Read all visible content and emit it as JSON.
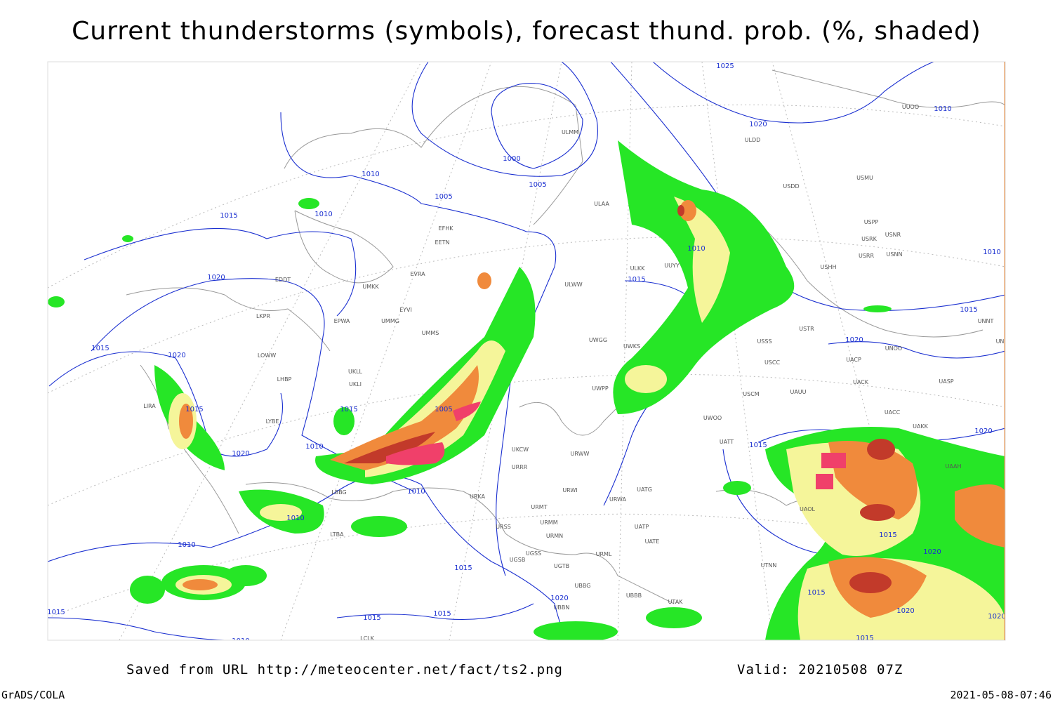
{
  "title": "Current thunderstorms (symbols), forecast thund. prob. (%, shaded)",
  "map": {
    "isobar_labels": [
      "1025",
      "1020",
      "1010",
      "1000",
      "1005",
      "1010",
      "1005",
      "1010",
      "1015",
      "1020",
      "1015",
      "1020",
      "1015",
      "1020",
      "1010",
      "1015",
      "1005",
      "1010",
      "1015",
      "1010",
      "1015",
      "1020",
      "1020",
      "1015",
      "1010",
      "1010",
      "1010",
      "1015",
      "1015",
      "1020",
      "1015",
      "1020",
      "1015",
      "1015",
      "1015",
      "1010",
      "1020",
      "1020",
      "1015"
    ],
    "station_labels": [
      "UUOO",
      "ULDD",
      "USDD",
      "USMU",
      "ULMM",
      "ULAA",
      "USPP",
      "USRK",
      "USNR",
      "USRR",
      "USNN",
      "USHH",
      "ULKK",
      "UUYY",
      "EFHK",
      "EETN",
      "EVRA",
      "EDDT",
      "UMKK",
      "ULWW",
      "EPWA",
      "UMMG",
      "EYVI",
      "LKPR",
      "UMMS",
      "USSS",
      "USTR",
      "UNNT",
      "UNBB",
      "UWGG",
      "UWKS",
      "UNOO",
      "USCC",
      "UACP",
      "UACK",
      "UASP",
      "LOWW",
      "UKLL",
      "UKLI",
      "LHBP",
      "UWPP",
      "USCM",
      "UAUU",
      "LIRA",
      "LYBE",
      "UKCW",
      "URWW",
      "UWOO",
      "UATT",
      "UAKK",
      "URRR",
      "UACC",
      "UAAH",
      "URWI",
      "UATG",
      "LBBG",
      "URKA",
      "URWA",
      "URMT",
      "UAOL",
      "URSS",
      "URMM",
      "URMN",
      "UATP",
      "UATE",
      "LTBA",
      "UGSS",
      "URML",
      "UGSB",
      "UGTB",
      "UTNN",
      "UBBG",
      "UBBB",
      "UBBN",
      "UTAK",
      "LCLK"
    ]
  },
  "footer": {
    "source": "Saved from URL http://meteocenter.net/fact/ts2.png",
    "valid": "Valid: 20210508 07Z",
    "software": "GrADS/COLA",
    "timestamp": "2021-05-08-07:46"
  }
}
